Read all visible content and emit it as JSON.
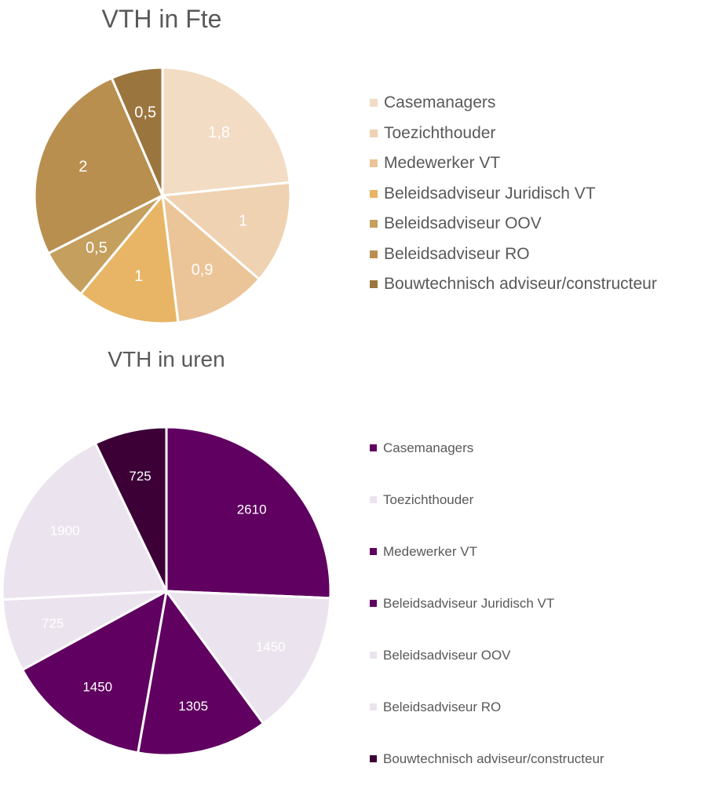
{
  "chart_data": [
    {
      "type": "pie",
      "title": "VTH in Fte",
      "categories": [
        "Casemanagers",
        "Toezichthouder",
        "Medewerker VT",
        "Beleidsadviseur Juridisch VT",
        "Beleidsadviseur OOV",
        "Beleidsadviseur RO",
        "Bouwtechnisch adviseur/constructeur"
      ],
      "values": [
        1.8,
        1,
        0.9,
        1,
        0.5,
        2,
        0.5
      ],
      "value_labels": [
        "1,8",
        "1",
        "0,9",
        "1",
        "0,5",
        "2",
        "0,5"
      ],
      "colors": [
        "#f3dcc4",
        "#efd2b2",
        "#ebc597",
        "#e7b565",
        "#c59f5e",
        "#b98f50",
        "#9b753e"
      ],
      "legend_placement": "right"
    },
    {
      "type": "pie",
      "title": "VTH in uren",
      "categories": [
        "Casemanagers",
        "Toezichthouder",
        "Medewerker VT",
        "Beleidsadviseur Juridisch VT",
        "Beleidsadviseur OOV",
        "Beleidsadviseur RO",
        "Bouwtechnisch adviseur/constructeur"
      ],
      "values": [
        2610,
        1450,
        1305,
        1450,
        725,
        1900,
        725
      ],
      "value_labels": [
        "2610",
        "1450",
        "1305",
        "1450",
        "725",
        "1900",
        "725"
      ],
      "colors": [
        "#600060",
        "#ebe3ee",
        "#600060",
        "#600060",
        "#ebe3ee",
        "#ebe3ee",
        "#3c0037"
      ],
      "legend_placement": "right"
    }
  ]
}
